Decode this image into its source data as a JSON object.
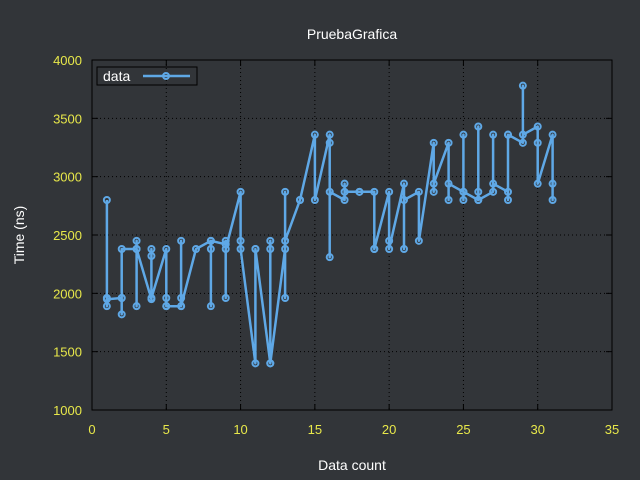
{
  "chart_data": {
    "type": "line",
    "title": "PruebaGrafica",
    "xlabel": "Data count",
    "ylabel": "Time (ns)",
    "xlim": [
      0,
      35
    ],
    "ylim": [
      1000,
      4000
    ],
    "x_ticks": [
      0,
      5,
      10,
      15,
      20,
      25,
      30,
      35
    ],
    "y_ticks": [
      1000,
      1500,
      2000,
      2500,
      3000,
      3500,
      4000
    ],
    "grid": true,
    "legend": "top-left",
    "colors": {
      "background": "#323539",
      "series": "#5fa8e6",
      "tick_labels": "#e8e84a",
      "text": "#ffffff",
      "border": "#000000"
    },
    "series": [
      {
        "name": "data",
        "x": [
          1,
          1,
          1,
          1,
          2,
          2,
          2,
          2,
          3,
          3,
          3,
          3,
          4,
          4,
          4,
          4,
          5,
          5,
          5,
          5,
          6,
          6,
          6,
          6,
          7,
          8,
          8,
          8,
          8,
          9,
          9,
          9,
          9,
          10,
          10,
          10,
          11,
          11,
          11,
          12,
          12,
          12,
          12,
          13,
          13,
          13,
          13,
          14,
          14,
          15,
          15,
          16,
          16,
          16,
          16,
          17,
          17,
          17,
          18,
          18,
          19,
          19,
          19,
          20,
          20,
          20,
          21,
          21,
          21,
          22,
          22,
          23,
          23,
          23,
          24,
          24,
          24,
          25,
          25,
          25,
          25,
          26,
          26,
          26,
          26,
          27,
          27,
          27,
          28,
          28,
          28,
          28,
          29,
          29,
          29,
          30,
          30,
          30,
          31,
          31,
          31
        ],
        "y": [
          2800,
          1960,
          1890,
          1950,
          1960,
          1820,
          1960,
          2380,
          2380,
          2450,
          1890,
          2380,
          1950,
          2320,
          2380,
          1960,
          2380,
          1960,
          1890,
          1890,
          1890,
          1960,
          2450,
          1890,
          2380,
          2450,
          2380,
          1890,
          2450,
          2420,
          1960,
          2450,
          2380,
          2870,
          2450,
          2380,
          1400,
          2380,
          2380,
          1400,
          2450,
          2380,
          1400,
          2380,
          2870,
          1960,
          2450,
          2800,
          2800,
          3360,
          2800,
          3360,
          3290,
          2310,
          2870,
          2800,
          2940,
          2870,
          2870,
          2870,
          2870,
          2380,
          2380,
          2870,
          2450,
          2380,
          2940,
          2380,
          2800,
          2870,
          2450,
          3290,
          2870,
          2940,
          3290,
          2800,
          2940,
          2870,
          2800,
          3360,
          2870,
          2800,
          3430,
          2870,
          2800,
          2870,
          3360,
          2940,
          2870,
          2800,
          3360,
          3360,
          3290,
          3780,
          3360,
          3430,
          3290,
          2940,
          3360,
          2800,
          2940
        ]
      }
    ]
  }
}
